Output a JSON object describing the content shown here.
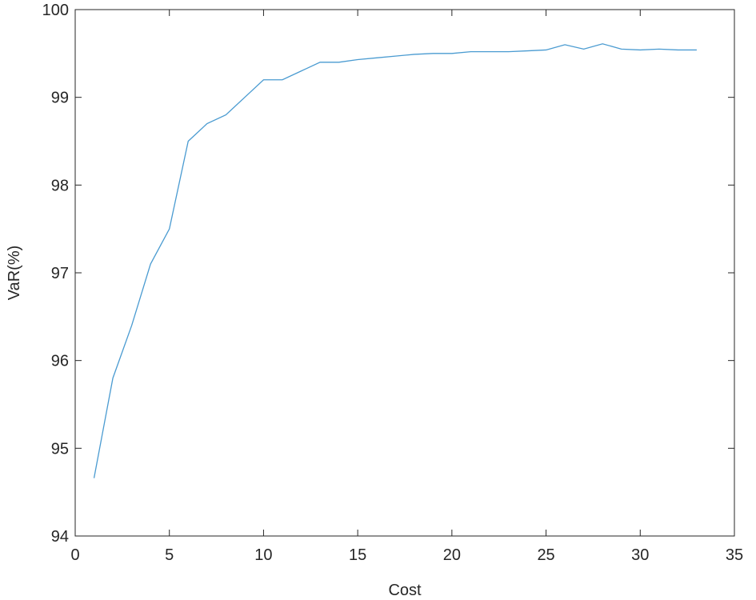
{
  "chart_data": {
    "type": "line",
    "x_label": "Cost",
    "y_label": "VaR(%)",
    "x": [
      1,
      2,
      3,
      4,
      5,
      6,
      7,
      8,
      9,
      10,
      11,
      12,
      13,
      14,
      15,
      16,
      17,
      18,
      19,
      20,
      21,
      22,
      23,
      24,
      25,
      26,
      27,
      28,
      29,
      30,
      31,
      32,
      33
    ],
    "series": [
      {
        "color": "#4a9bd1",
        "values": [
          94.66,
          95.8,
          96.4,
          97.1,
          97.5,
          98.5,
          98.7,
          98.8,
          99.0,
          99.2,
          99.2,
          99.3,
          99.4,
          99.4,
          99.43,
          99.45,
          99.47,
          99.49,
          99.5,
          99.5,
          99.52,
          99.52,
          99.52,
          99.53,
          99.54,
          99.6,
          99.55,
          99.61,
          99.55,
          99.54,
          99.55,
          99.54,
          99.54
        ]
      }
    ],
    "xlim": [
      0,
      35
    ],
    "xticks": [
      0,
      5,
      10,
      15,
      20,
      25,
      30,
      35
    ],
    "ylim": [
      94,
      100
    ],
    "yticks": [
      94,
      95,
      96,
      97,
      98,
      99,
      100
    ],
    "grid": false
  }
}
